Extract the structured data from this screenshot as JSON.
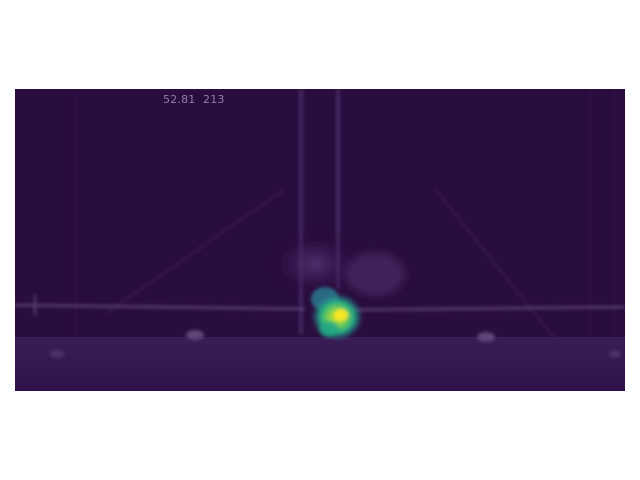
{
  "overlay": {
    "time_value": "52.81",
    "frame_value": "213"
  },
  "colors": {
    "page_background": "#ffffff",
    "frame_background": "#2a0d3f",
    "overlay_text": "#8f7fa8",
    "heatmap_low": "#3b528b",
    "heatmap_mid": "#21918c",
    "heatmap_high": "#c8e020"
  },
  "colormap": "viridis"
}
